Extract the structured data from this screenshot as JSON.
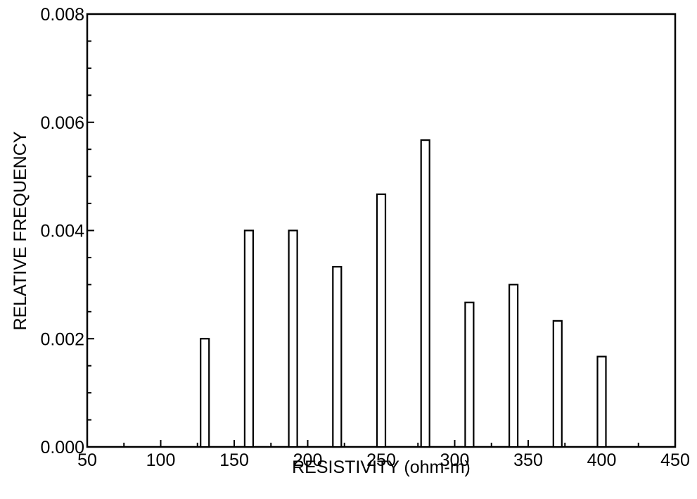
{
  "chart_data": {
    "type": "bar",
    "title": "",
    "xlabel": "RESISTIVITY (ohm-m)",
    "ylabel": "RELATIVE FREQUENCY",
    "xlim": [
      50,
      450
    ],
    "ylim": [
      0,
      0.008
    ],
    "x_ticks": [
      "50",
      "100",
      "150",
      "200",
      "250",
      "300",
      "350",
      "400",
      "450"
    ],
    "y_ticks": [
      "0.000",
      "0.002",
      "0.004",
      "0.006",
      "0.008"
    ],
    "grid": false,
    "bar_fill": "#ffffff",
    "bar_stroke": "#000000",
    "x": [
      130,
      160,
      190,
      220,
      250,
      280,
      310,
      340,
      370,
      400
    ],
    "values": [
      0.002,
      0.004,
      0.004,
      0.00333,
      0.00467,
      0.00567,
      0.00267,
      0.003,
      0.00233,
      0.00167
    ]
  }
}
